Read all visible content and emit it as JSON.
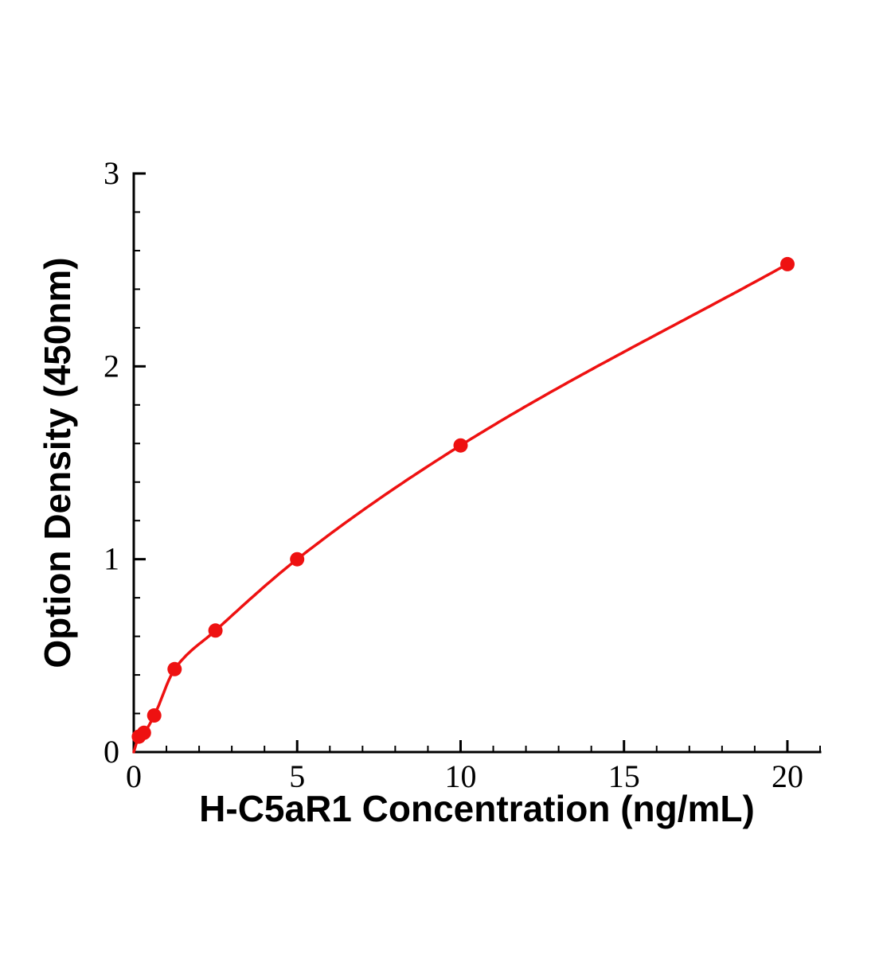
{
  "figure": {
    "background_color": "#ffffff"
  },
  "chart_data": {
    "type": "scatter",
    "title": "",
    "xlabel": "H-C5aR1 Concentration (ng/mL)",
    "ylabel": "Option Density (450nm)",
    "x": [
      0.156,
      0.313,
      0.625,
      1.25,
      2.5,
      5,
      10,
      20
    ],
    "y": [
      0.08,
      0.1,
      0.19,
      0.43,
      0.63,
      1.0,
      1.59,
      2.53
    ],
    "curve_through_origin": true,
    "xlim": [
      0,
      21
    ],
    "ylim": [
      0,
      3
    ],
    "x_ticks": [
      0,
      5,
      10,
      15,
      20
    ],
    "y_ticks": [
      0,
      1,
      2,
      3
    ],
    "x_tick_labels": [
      "0",
      "5",
      "10",
      "15",
      "20"
    ],
    "y_tick_labels": [
      "0",
      "1",
      "2",
      "3"
    ],
    "x_minor_step": 1,
    "y_minor_step": 0.2,
    "grid": false,
    "legend": "none",
    "point_color": "#ee1111",
    "line_color": "#ee1111",
    "axis_color": "#000000"
  }
}
